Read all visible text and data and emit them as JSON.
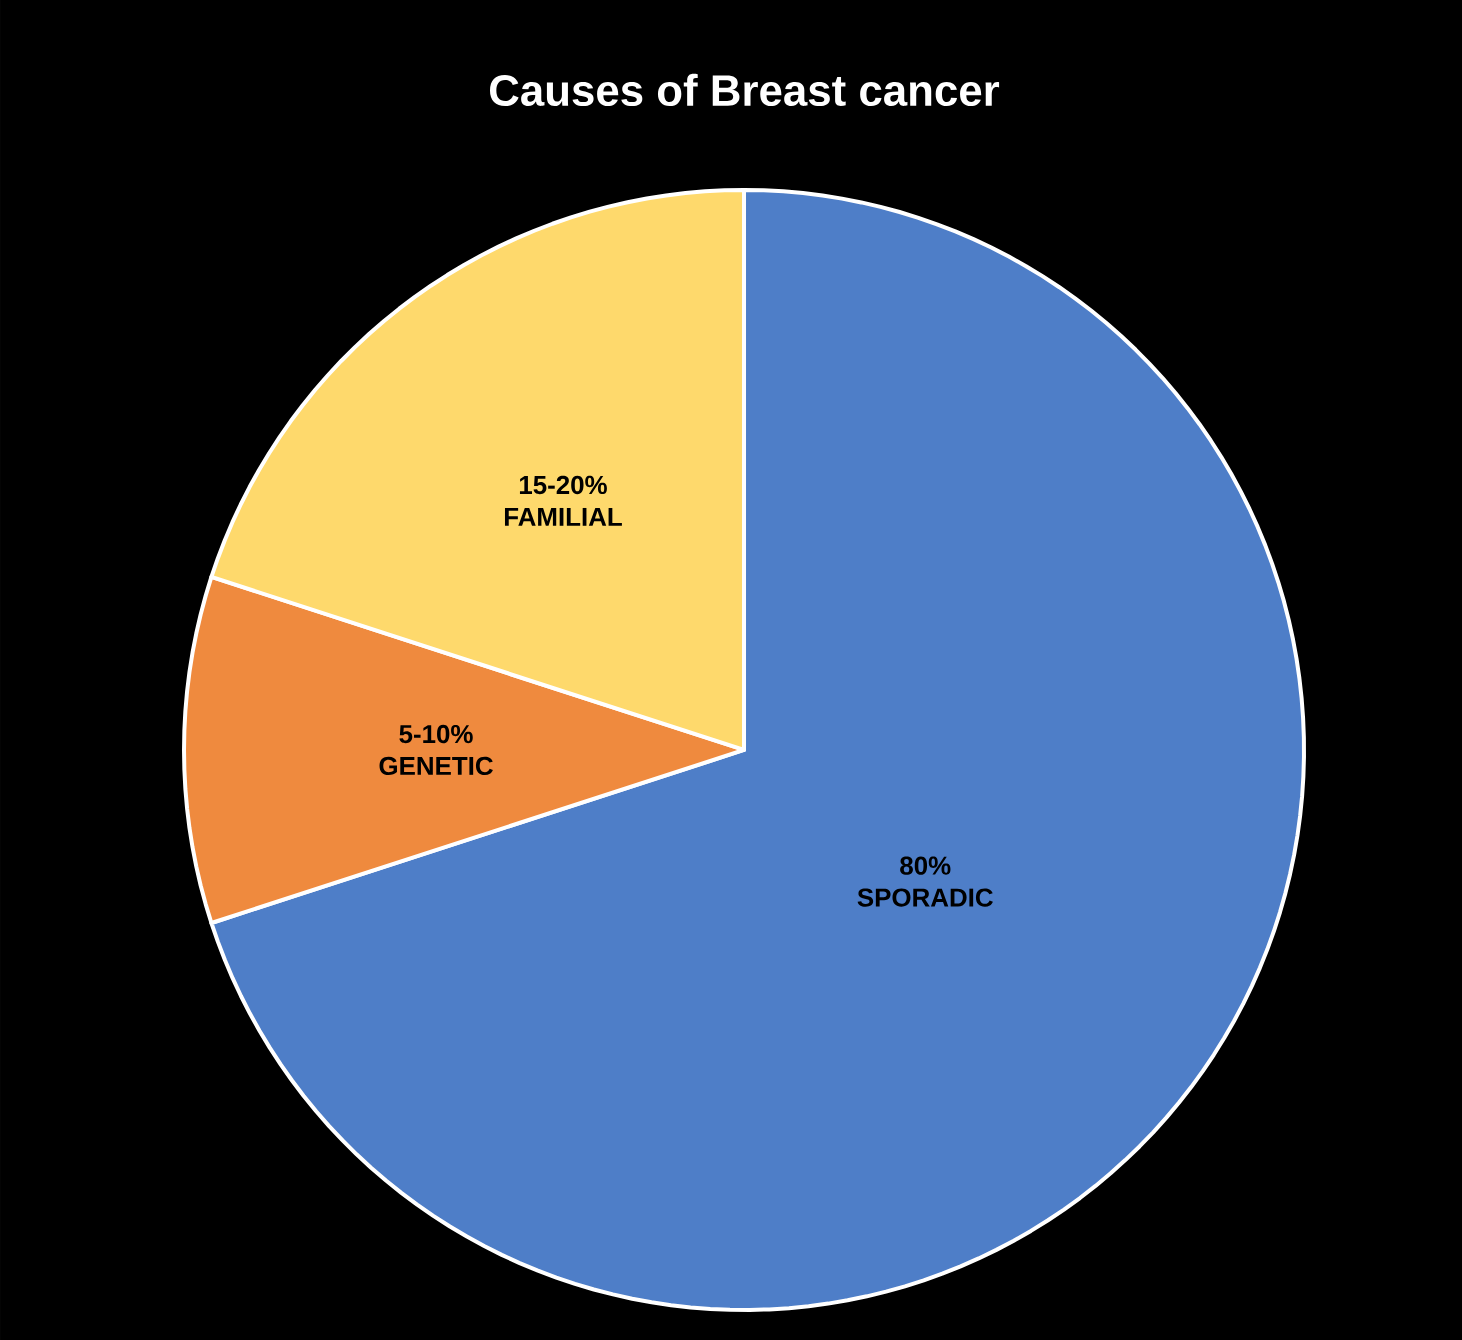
{
  "chart_data": {
    "type": "pie",
    "title": "Causes of Breast cancer",
    "categories": [
      "80% SPORADIC",
      "5-10% GENETIC",
      "15-20% FAMILIAL"
    ],
    "values": [
      70,
      10,
      20
    ],
    "colors": [
      "#4e7ec8",
      "#ef8a3e",
      "#fed96c"
    ]
  }
}
